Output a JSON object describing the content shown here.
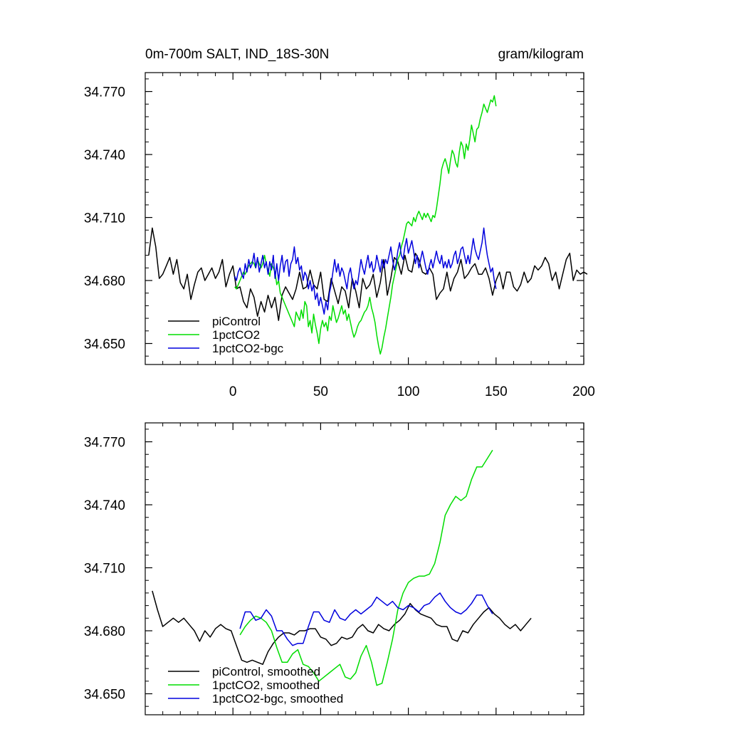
{
  "chart_data": [
    {
      "type": "line",
      "title_left": "0m-700m SALT, IND_18S-30N",
      "title_right": "gram/kilogram",
      "xlim": [
        -50,
        200
      ],
      "ylim": [
        34.64,
        34.779
      ],
      "x_ticks": [
        0,
        50,
        100,
        150,
        200
      ],
      "x_tick_labels": [
        "0",
        "50",
        "100",
        "150",
        "200"
      ],
      "y_ticks": [
        34.65,
        34.68,
        34.71,
        34.74,
        34.77
      ],
      "y_tick_labels": [
        "34.650",
        "34.680",
        "34.710",
        "34.740",
        "34.770"
      ],
      "legend": [
        "piControl",
        "1pctCO2",
        "1pctCO2-bgc"
      ],
      "legend_position": "bottom-left",
      "series": [
        {
          "name": "piControl",
          "color": "#000000",
          "x_start": -48,
          "x_step": 2,
          "values": [
            34.692,
            34.705,
            34.696,
            34.681,
            34.683,
            34.687,
            34.691,
            34.683,
            34.69,
            34.679,
            34.676,
            34.683,
            34.671,
            34.678,
            34.684,
            34.686,
            34.68,
            34.683,
            34.686,
            34.681,
            34.684,
            34.69,
            34.677,
            34.683,
            34.687,
            34.676,
            34.677,
            34.67,
            34.667,
            34.676,
            34.672,
            34.663,
            34.67,
            34.665,
            34.673,
            34.667,
            34.672,
            34.661,
            34.673,
            34.677,
            34.674,
            34.671,
            34.676,
            34.684,
            34.676,
            34.677,
            34.685,
            34.678,
            34.676,
            34.684,
            34.671,
            34.67,
            34.681,
            34.675,
            34.669,
            34.677,
            34.675,
            34.667,
            34.681,
            34.675,
            34.667,
            34.681,
            34.676,
            34.678,
            34.683,
            34.672,
            34.679,
            34.69,
            34.673,
            34.681,
            34.691,
            34.689,
            34.683,
            34.692,
            34.685,
            34.684,
            34.693,
            34.69,
            34.684,
            34.683,
            34.686,
            34.683,
            34.671,
            34.674,
            34.676,
            34.684,
            34.675,
            34.681,
            34.684,
            34.69,
            34.681,
            34.683,
            34.686,
            34.688,
            34.683,
            34.683,
            34.686,
            34.681,
            34.673,
            34.68,
            34.684,
            34.676,
            34.684,
            34.684,
            34.677,
            34.675,
            34.678,
            34.684,
            34.679,
            34.681,
            34.687,
            34.685,
            34.687,
            34.691,
            34.688,
            34.68,
            34.684,
            34.676,
            34.683,
            34.69,
            34.693,
            34.68,
            34.685,
            34.683,
            34.684,
            34.683
          ]
        },
        {
          "name": "1pctCO2",
          "color": "#00dd00",
          "x_start": 1,
          "x_step": 1,
          "values": [
            34.677,
            34.676,
            34.678,
            34.68,
            34.682,
            34.684,
            34.683,
            34.685,
            34.687,
            34.688,
            34.689,
            34.688,
            34.686,
            34.69,
            34.688,
            34.686,
            34.688,
            34.692,
            34.688,
            34.685,
            34.682,
            34.688,
            34.686,
            34.684,
            34.678,
            34.68,
            34.674,
            34.672,
            34.67,
            34.668,
            34.666,
            34.664,
            34.662,
            34.66,
            34.658,
            34.665,
            34.663,
            34.661,
            34.666,
            34.662,
            34.67,
            34.668,
            34.658,
            34.661,
            34.655,
            34.664,
            34.659,
            34.655,
            34.65,
            34.657,
            34.661,
            34.658,
            34.66,
            34.656,
            34.663,
            34.661,
            34.668,
            34.664,
            34.66,
            34.662,
            34.665,
            34.668,
            34.664,
            34.666,
            34.661,
            34.664,
            34.66,
            34.656,
            34.653,
            34.655,
            34.658,
            34.66,
            34.661,
            34.663,
            34.665,
            34.666,
            34.668,
            34.672,
            34.667,
            34.664,
            34.66,
            34.654,
            34.649,
            34.645,
            34.648,
            34.653,
            34.657,
            34.662,
            34.667,
            34.672,
            34.678,
            34.682,
            34.686,
            34.69,
            34.692,
            34.696,
            34.699,
            34.703,
            34.707,
            34.708,
            34.707,
            34.706,
            34.71,
            34.708,
            34.711,
            34.713,
            34.711,
            34.709,
            34.712,
            34.71,
            34.712,
            34.71,
            34.708,
            34.711,
            34.71,
            34.714,
            34.72,
            34.726,
            34.733,
            34.736,
            34.738,
            34.735,
            34.731,
            34.737,
            34.742,
            34.74,
            34.736,
            34.734,
            34.741,
            34.746,
            34.744,
            34.738,
            34.745,
            34.742,
            34.747,
            34.754,
            34.75,
            34.746,
            34.752,
            34.753,
            34.757,
            34.76,
            34.764,
            34.762,
            34.76,
            34.763,
            34.766,
            34.765,
            34.768,
            34.763
          ]
        },
        {
          "name": "1pctCO2-bgc",
          "color": "#0000dd",
          "x_start": 1,
          "x_step": 1,
          "values": [
            34.682,
            34.68,
            34.684,
            34.686,
            34.683,
            34.681,
            34.688,
            34.684,
            34.69,
            34.686,
            34.688,
            34.693,
            34.686,
            34.691,
            34.684,
            34.688,
            34.692,
            34.686,
            34.689,
            34.683,
            34.689,
            34.685,
            34.692,
            34.681,
            34.688,
            34.68,
            34.687,
            34.692,
            34.684,
            34.689,
            34.69,
            34.682,
            34.688,
            34.69,
            34.696,
            34.688,
            34.691,
            34.685,
            34.687,
            34.68,
            34.684,
            34.682,
            34.676,
            34.68,
            34.675,
            34.678,
            34.671,
            34.674,
            34.668,
            34.672,
            34.668,
            34.664,
            34.67,
            34.666,
            34.674,
            34.678,
            34.684,
            34.69,
            34.684,
            34.688,
            34.682,
            34.686,
            34.684,
            34.68,
            34.676,
            34.683,
            34.686,
            34.68,
            34.676,
            34.68,
            34.678,
            34.684,
            34.69,
            34.686,
            34.683,
            34.688,
            34.692,
            34.686,
            34.689,
            34.684,
            34.686,
            34.692,
            34.688,
            34.684,
            34.69,
            34.686,
            34.69,
            34.688,
            34.692,
            34.696,
            34.69,
            34.685,
            34.688,
            34.694,
            34.698,
            34.692,
            34.69,
            34.696,
            34.7,
            34.693,
            34.696,
            34.699,
            34.694,
            34.688,
            34.692,
            34.686,
            34.69,
            34.694,
            34.69,
            34.686,
            34.683,
            34.687,
            34.69,
            34.686,
            34.69,
            34.694,
            34.69,
            34.688,
            34.692,
            34.686,
            34.689,
            34.686,
            34.69,
            34.686,
            34.688,
            34.692,
            34.694,
            34.688,
            34.691,
            34.695,
            34.696,
            34.692,
            34.688,
            34.692,
            34.688,
            34.694,
            34.7,
            34.695,
            34.692,
            34.69,
            34.694,
            34.698,
            34.705,
            34.698,
            34.692,
            34.688,
            34.684,
            34.686,
            34.68,
            34.676
          ]
        }
      ]
    },
    {
      "type": "line",
      "xlim": [
        -50,
        200
      ],
      "ylim": [
        34.64,
        34.779
      ],
      "x_ticks": [
        0,
        50,
        100,
        150,
        200
      ],
      "y_ticks": [
        34.65,
        34.68,
        34.71,
        34.74,
        34.77
      ],
      "y_tick_labels": [
        "34.650",
        "34.680",
        "34.710",
        "34.740",
        "34.770"
      ],
      "legend": [
        "piControl, smoothed",
        "1pctCO2, smoothed",
        "1pctCO2-bgc, smoothed"
      ],
      "legend_position": "bottom-left",
      "series": [
        {
          "name": "piControl, smoothed",
          "color": "#000000",
          "x_start": -46,
          "x_step": 3,
          "values": [
            34.699,
            34.69,
            34.682,
            34.684,
            34.686,
            34.684,
            34.686,
            34.683,
            34.68,
            34.675,
            34.68,
            34.677,
            34.681,
            34.683,
            34.681,
            34.68,
            34.673,
            34.666,
            34.665,
            34.666,
            34.665,
            34.664,
            34.67,
            34.674,
            34.677,
            34.679,
            34.679,
            34.678,
            34.68,
            34.68,
            34.681,
            34.681,
            34.677,
            34.676,
            34.673,
            34.674,
            34.677,
            34.676,
            34.677,
            34.681,
            34.683,
            34.68,
            34.679,
            34.683,
            34.681,
            34.68,
            34.683,
            34.685,
            34.688,
            34.693,
            34.69,
            34.688,
            34.687,
            34.686,
            34.683,
            34.682,
            34.682,
            34.676,
            34.675,
            34.68,
            34.679,
            34.683,
            34.686,
            34.689,
            34.691,
            34.688,
            34.686,
            34.683,
            34.681,
            34.683,
            34.68,
            34.683,
            34.686
          ]
        },
        {
          "name": "1pctCO2, smoothed",
          "color": "#00dd00",
          "x_start": 4,
          "x_step": 3,
          "values": [
            34.678,
            34.682,
            34.685,
            34.687,
            34.686,
            34.684,
            34.68,
            34.672,
            34.665,
            34.665,
            34.669,
            34.671,
            34.664,
            34.663,
            34.66,
            34.656,
            34.658,
            34.66,
            34.662,
            34.664,
            34.658,
            34.657,
            34.66,
            34.668,
            34.673,
            34.665,
            34.654,
            34.655,
            34.665,
            34.676,
            34.69,
            34.698,
            34.703,
            34.705,
            34.706,
            34.706,
            34.707,
            34.712,
            34.722,
            34.735,
            34.74,
            34.744,
            34.742,
            34.744,
            34.752,
            34.758,
            34.758,
            34.762,
            34.766
          ]
        },
        {
          "name": "1pctCO2-bgc, smoothed",
          "color": "#0000dd",
          "x_start": 4,
          "x_step": 3,
          "values": [
            34.681,
            34.689,
            34.689,
            34.685,
            34.686,
            34.69,
            34.687,
            34.68,
            34.68,
            34.676,
            34.673,
            34.674,
            34.674,
            34.682,
            34.689,
            34.689,
            34.685,
            34.684,
            34.69,
            34.686,
            34.685,
            34.688,
            34.69,
            34.688,
            34.69,
            34.692,
            34.696,
            34.694,
            34.692,
            34.694,
            34.691,
            34.69,
            34.692,
            34.691,
            34.689,
            34.692,
            34.693,
            34.696,
            34.698,
            34.694,
            34.691,
            34.689,
            34.688,
            34.69,
            34.693,
            34.697,
            34.697,
            34.692,
            34.688
          ]
        }
      ]
    }
  ]
}
